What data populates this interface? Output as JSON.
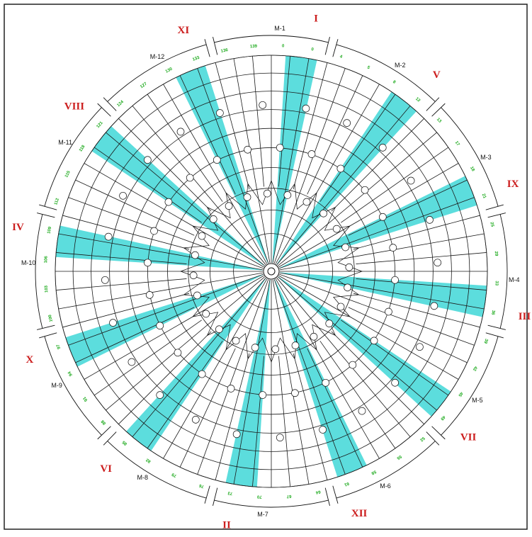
{
  "colors": {
    "band": "#3fd7d7",
    "roman": "#cc1f1f",
    "green_label": "#1aa91a",
    "line": "#1a1a1a"
  },
  "romans": [
    "I",
    "V",
    "IX",
    "III",
    "VII",
    "XII",
    "II",
    "VI",
    "X",
    "IV",
    "VIII",
    "XI"
  ],
  "sectors": [
    "M-1",
    "M-2",
    "M-3",
    "M-4",
    "M-5",
    "M-6",
    "M-7",
    "M-8",
    "M-9",
    "M-10",
    "M-11",
    "M-12"
  ],
  "band_count": 12,
  "ring_count": 10,
  "spoke_count": 72,
  "green_labels": [
    "0",
    "0",
    "4",
    "5",
    "8",
    "12",
    "13",
    "17",
    "18",
    "21",
    "25",
    "29",
    "33",
    "36",
    "39",
    "42",
    "45",
    "49",
    "52",
    "55",
    "58",
    "61",
    "64",
    "67",
    "70",
    "73",
    "76",
    "79",
    "82",
    "85",
    "88",
    "91",
    "94",
    "97",
    "100",
    "103",
    "106",
    "109",
    "112",
    "115",
    "118",
    "121",
    "124",
    "127",
    "130",
    "133",
    "136",
    "139"
  ]
}
